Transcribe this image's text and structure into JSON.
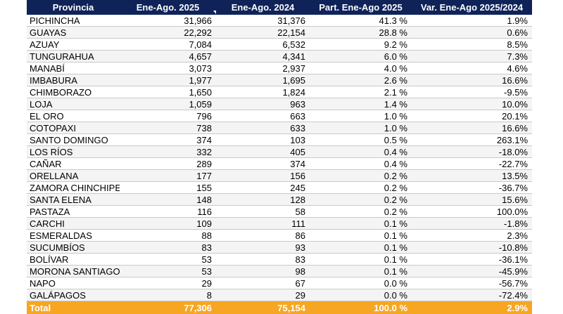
{
  "headers": [
    "Provincia",
    "Ene-Ago. 2025",
    "Ene-Ago. 2024",
    "Part. Ene-Ago 2025",
    "Var. Ene-Ago 2025/2024"
  ],
  "rows": [
    [
      "PICHINCHA",
      "31,966",
      "31,376",
      "41.3 %",
      "1.9%"
    ],
    [
      "GUAYAS",
      "22,292",
      "22,154",
      "28.8 %",
      "0.6%"
    ],
    [
      "AZUAY",
      "7,084",
      "6,532",
      "9.2 %",
      "8.5%"
    ],
    [
      "TUNGURAHUA",
      "4,657",
      "4,341",
      "6.0 %",
      "7.3%"
    ],
    [
      "MANABÍ",
      "3,073",
      "2,937",
      "4.0 %",
      "4.6%"
    ],
    [
      "IMBABURA",
      "1,977",
      "1,695",
      "2.6 %",
      "16.6%"
    ],
    [
      "CHIMBORAZO",
      "1,650",
      "1,824",
      "2.1 %",
      "-9.5%"
    ],
    [
      "LOJA",
      "1,059",
      "963",
      "1.4 %",
      "10.0%"
    ],
    [
      "EL ORO",
      "796",
      "663",
      "1.0 %",
      "20.1%"
    ],
    [
      "COTOPAXI",
      "738",
      "633",
      "1.0 %",
      "16.6%"
    ],
    [
      "SANTO DOMINGO",
      "374",
      "103",
      "0.5 %",
      "263.1%"
    ],
    [
      "LOS RÍOS",
      "332",
      "405",
      "0.4 %",
      "-18.0%"
    ],
    [
      "CAÑAR",
      "289",
      "374",
      "0.4 %",
      "-22.7%"
    ],
    [
      "ORELLANA",
      "177",
      "156",
      "0.2 %",
      "13.5%"
    ],
    [
      "ZAMORA CHINCHIPE",
      "155",
      "245",
      "0.2 %",
      "-36.7%"
    ],
    [
      "SANTA ELENA",
      "148",
      "128",
      "0.2 %",
      "15.6%"
    ],
    [
      "PASTAZA",
      "116",
      "58",
      "0.2 %",
      "100.0%"
    ],
    [
      "CARCHI",
      "109",
      "111",
      "0.1 %",
      "-1.8%"
    ],
    [
      "ESMERALDAS",
      "88",
      "86",
      "0.1 %",
      "2.3%"
    ],
    [
      "SUCUMBÍOS",
      "83",
      "93",
      "0.1 %",
      "-10.8%"
    ],
    [
      "BOLÍVAR",
      "53",
      "83",
      "0.1 %",
      "-36.1%"
    ],
    [
      "MORONA SANTIAGO",
      "53",
      "98",
      "0.1 %",
      "-45.9%"
    ],
    [
      "NAPO",
      "29",
      "67",
      "0.0 %",
      "-56.7%"
    ],
    [
      "GALÁPAGOS",
      "8",
      "29",
      "0.0 %",
      "-72.4%"
    ]
  ],
  "total": [
    "Total",
    "77,306",
    "75,154",
    "100.0 %",
    "2.9%"
  ],
  "sort_icon": "sort-descending-icon",
  "colors": {
    "header_bg": "#0f2359",
    "total_bg": "#f6a623"
  }
}
